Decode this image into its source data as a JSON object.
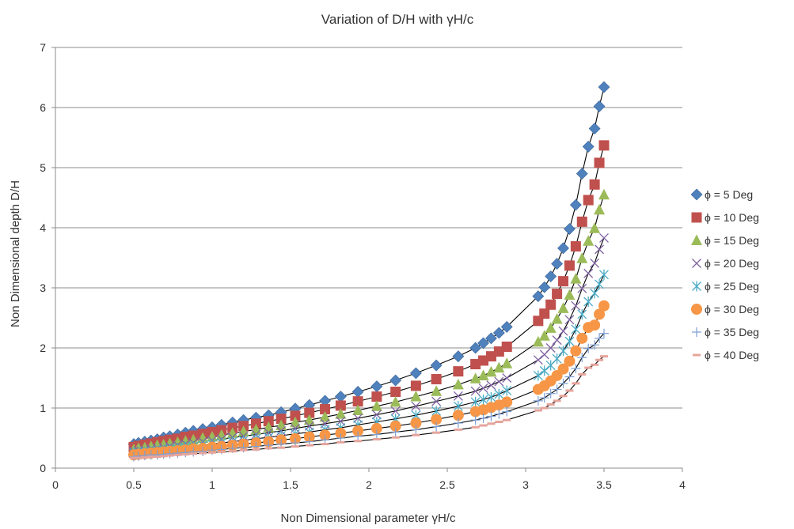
{
  "chart_data": {
    "type": "scatter",
    "title": "Variation of D/H with γH/c",
    "xlabel": "Non Dimensional parameter γH/c",
    "ylabel": "Non Dimensional depth D/H",
    "xlim": [
      0,
      4
    ],
    "ylim": [
      0,
      7
    ],
    "xticks": [
      "0",
      "0.5",
      "1",
      "1.5",
      "2",
      "2.5",
      "3",
      "3.5",
      "4"
    ],
    "yticks": [
      "0",
      "1",
      "2",
      "3",
      "4",
      "5",
      "6",
      "7"
    ],
    "grid": "horizontal",
    "legend_position": "right",
    "trendlines": true,
    "x": [
      0.5,
      0.53,
      0.57,
      0.61,
      0.65,
      0.69,
      0.73,
      0.78,
      0.83,
      0.88,
      0.94,
      1.0,
      1.06,
      1.13,
      1.2,
      1.28,
      1.36,
      1.44,
      1.53,
      1.62,
      1.72,
      1.82,
      1.93,
      2.05,
      2.17,
      2.3,
      2.43,
      2.57,
      2.68,
      2.73,
      2.78,
      2.83,
      2.88,
      3.08,
      3.12,
      3.16,
      3.2,
      3.24,
      3.28,
      3.32,
      3.36,
      3.4,
      3.44,
      3.47,
      3.5
    ],
    "series": [
      {
        "name": "ϕ = 5 Deg",
        "marker": "diamond",
        "color": "#4F81BD",
        "values": [
          0.4,
          0.42,
          0.44,
          0.46,
          0.48,
          0.51,
          0.53,
          0.56,
          0.59,
          0.62,
          0.65,
          0.68,
          0.72,
          0.76,
          0.8,
          0.84,
          0.88,
          0.93,
          0.99,
          1.05,
          1.12,
          1.19,
          1.27,
          1.36,
          1.46,
          1.58,
          1.71,
          1.86,
          2.0,
          2.08,
          2.16,
          2.25,
          2.35,
          2.86,
          3.01,
          3.19,
          3.4,
          3.66,
          3.98,
          4.38,
          4.9,
          5.35,
          5.65,
          6.02,
          6.34
        ]
      },
      {
        "name": "ϕ = 10 Deg",
        "marker": "square",
        "color": "#C0504D",
        "values": [
          0.35,
          0.37,
          0.39,
          0.41,
          0.43,
          0.45,
          0.47,
          0.49,
          0.52,
          0.54,
          0.57,
          0.6,
          0.63,
          0.67,
          0.7,
          0.74,
          0.78,
          0.82,
          0.87,
          0.92,
          0.98,
          1.04,
          1.11,
          1.19,
          1.27,
          1.37,
          1.48,
          1.61,
          1.73,
          1.79,
          1.86,
          1.94,
          2.02,
          2.45,
          2.57,
          2.72,
          2.9,
          3.11,
          3.37,
          3.69,
          4.1,
          4.46,
          4.72,
          5.08,
          5.37
        ]
      },
      {
        "name": "ϕ = 15 Deg",
        "marker": "triangle",
        "color": "#9BBB59",
        "values": [
          0.31,
          0.33,
          0.34,
          0.36,
          0.38,
          0.39,
          0.41,
          0.43,
          0.45,
          0.47,
          0.5,
          0.52,
          0.55,
          0.58,
          0.61,
          0.64,
          0.68,
          0.71,
          0.76,
          0.8,
          0.85,
          0.9,
          0.96,
          1.03,
          1.1,
          1.19,
          1.28,
          1.39,
          1.49,
          1.54,
          1.6,
          1.67,
          1.74,
          2.1,
          2.2,
          2.33,
          2.48,
          2.66,
          2.88,
          3.15,
          3.49,
          3.78,
          3.99,
          4.3,
          4.55
        ]
      },
      {
        "name": "ϕ = 20 Deg",
        "marker": "x",
        "color": "#8064A2",
        "values": [
          0.28,
          0.29,
          0.3,
          0.32,
          0.33,
          0.34,
          0.36,
          0.38,
          0.4,
          0.42,
          0.44,
          0.46,
          0.48,
          0.51,
          0.53,
          0.56,
          0.59,
          0.62,
          0.66,
          0.7,
          0.74,
          0.78,
          0.83,
          0.89,
          0.95,
          1.03,
          1.11,
          1.2,
          1.28,
          1.33,
          1.38,
          1.44,
          1.5,
          1.8,
          1.89,
          2.0,
          2.13,
          2.28,
          2.47,
          2.7,
          2.99,
          3.24,
          3.41,
          3.64,
          3.83
        ]
      },
      {
        "name": "ϕ = 25 Deg",
        "marker": "asterisk",
        "color": "#4BACC6",
        "values": [
          0.25,
          0.26,
          0.27,
          0.28,
          0.29,
          0.3,
          0.32,
          0.33,
          0.35,
          0.36,
          0.38,
          0.4,
          0.42,
          0.44,
          0.46,
          0.49,
          0.51,
          0.54,
          0.57,
          0.6,
          0.64,
          0.67,
          0.72,
          0.77,
          0.82,
          0.88,
          0.95,
          1.03,
          1.1,
          1.14,
          1.18,
          1.23,
          1.29,
          1.54,
          1.62,
          1.71,
          1.82,
          1.95,
          2.11,
          2.31,
          2.56,
          2.77,
          2.91,
          3.06,
          3.22
        ]
      },
      {
        "name": "ϕ = 30 Deg",
        "marker": "circle",
        "color": "#F79646",
        "values": [
          0.22,
          0.23,
          0.24,
          0.25,
          0.26,
          0.27,
          0.28,
          0.29,
          0.3,
          0.32,
          0.33,
          0.35,
          0.36,
          0.38,
          0.4,
          0.42,
          0.44,
          0.47,
          0.49,
          0.52,
          0.55,
          0.58,
          0.62,
          0.66,
          0.7,
          0.75,
          0.81,
          0.88,
          0.94,
          0.97,
          1.01,
          1.05,
          1.1,
          1.31,
          1.37,
          1.45,
          1.54,
          1.65,
          1.78,
          1.95,
          2.16,
          2.34,
          2.38,
          2.56,
          2.7
        ]
      },
      {
        "name": "ϕ = 35 Deg",
        "marker": "plus",
        "color": "#7F9FD3",
        "values": [
          0.19,
          0.2,
          0.21,
          0.22,
          0.22,
          0.23,
          0.24,
          0.25,
          0.26,
          0.27,
          0.28,
          0.3,
          0.31,
          0.33,
          0.34,
          0.36,
          0.38,
          0.4,
          0.42,
          0.44,
          0.47,
          0.5,
          0.53,
          0.56,
          0.6,
          0.64,
          0.69,
          0.75,
          0.8,
          0.83,
          0.86,
          0.9,
          0.94,
          1.12,
          1.17,
          1.24,
          1.31,
          1.41,
          1.52,
          1.66,
          1.84,
          1.99,
          2.05,
          2.16,
          2.24
        ]
      },
      {
        "name": "ϕ = 40 Deg",
        "marker": "dash",
        "color": "#E6A49C",
        "values": [
          0.17,
          0.17,
          0.18,
          0.19,
          0.19,
          0.2,
          0.21,
          0.22,
          0.23,
          0.24,
          0.25,
          0.26,
          0.27,
          0.28,
          0.3,
          0.31,
          0.33,
          0.34,
          0.36,
          0.38,
          0.4,
          0.43,
          0.45,
          0.48,
          0.51,
          0.55,
          0.59,
          0.64,
          0.68,
          0.71,
          0.74,
          0.77,
          0.8,
          0.96,
          1.0,
          1.06,
          1.12,
          1.2,
          1.29,
          1.41,
          1.56,
          1.67,
          1.72,
          1.8,
          1.86
        ]
      }
    ]
  }
}
